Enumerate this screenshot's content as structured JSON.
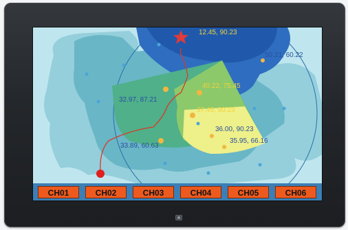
{
  "colors": {
    "background": "#bfe6ee",
    "channel_bar": "#3b7fb6",
    "channel_button": "#ee5a1e",
    "target_star": "#e03a3a",
    "origin_marker": "#e0201c",
    "track": "#d83a28",
    "label_yellow": "#f2d23a",
    "label_blue": "#2a4f9e"
  },
  "map": {
    "target_coordinate": "12.45, 90.23",
    "points": [
      {
        "label": "50.21, 60.22"
      },
      {
        "label": "40.22, 75.45"
      },
      {
        "label": "32.97, 87.21"
      },
      {
        "label": "37.45, 90.23"
      },
      {
        "label": "36.00, 90.23"
      },
      {
        "label": "35.95, 66.16"
      },
      {
        "label": "33.89, 60.63"
      }
    ]
  },
  "channels": [
    {
      "label": "CH01"
    },
    {
      "label": "CH02"
    },
    {
      "label": "CH03"
    },
    {
      "label": "CH04"
    },
    {
      "label": "CH05"
    },
    {
      "label": "CH06"
    }
  ]
}
